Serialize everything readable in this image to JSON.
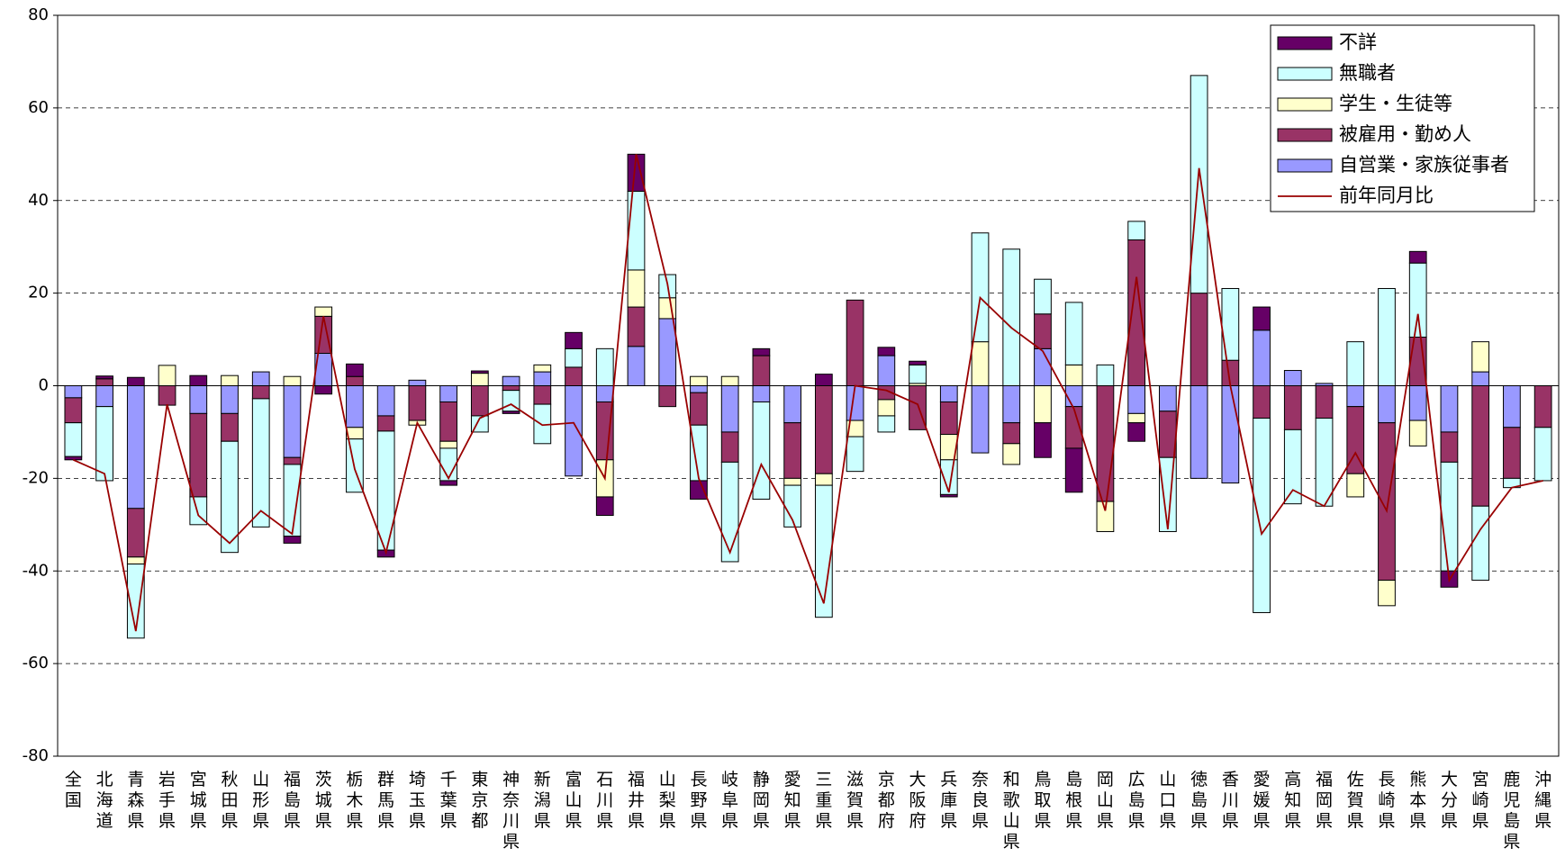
{
  "chart_data": {
    "type": "bar",
    "stacked": true,
    "categories": [
      "全国",
      "北海道",
      "青森県",
      "岩手県",
      "宮城県",
      "秋田県",
      "山形県",
      "福島県",
      "茨城県",
      "栃木県",
      "群馬県",
      "埼玉県",
      "千葉県",
      "東京都",
      "神奈川県",
      "新潟県",
      "富山県",
      "石川県",
      "福井県",
      "山梨県",
      "長野県",
      "岐阜県",
      "静岡県",
      "愛知県",
      "三重県",
      "滋賀県",
      "京都府",
      "大阪府",
      "兵庫県",
      "奈良県",
      "和歌山県",
      "鳥取県",
      "島根県",
      "岡山県",
      "広島県",
      "山口県",
      "徳島県",
      "香川県",
      "愛媛県",
      "高知県",
      "福岡県",
      "佐賀県",
      "長崎県",
      "熊本県",
      "大分県",
      "宮崎県",
      "鹿児島県",
      "沖縄県"
    ],
    "series": [
      {
        "name": "不詳",
        "color": "#660066",
        "values": [
          -0.7,
          0.6,
          1.8,
          0,
          2.2,
          0,
          0,
          -1.5,
          -1.8,
          2.7,
          -1.5,
          0,
          -1,
          0.5,
          -0.5,
          0,
          3.5,
          -4,
          8,
          0,
          -4,
          0,
          1.5,
          0,
          2.5,
          0,
          1.8,
          0.8,
          -0.5,
          0,
          0,
          -7.5,
          -9.5,
          0,
          -4,
          0,
          0,
          0,
          5,
          0,
          0,
          0,
          0,
          2.5,
          -3.5,
          0,
          0,
          0
        ]
      },
      {
        "name": "無職者",
        "color": "#ccffff",
        "values": [
          -7.3,
          -16,
          -16,
          0,
          -6,
          -24,
          -27.7,
          -15.5,
          0,
          -11.5,
          -25.7,
          0,
          -7,
          -3.5,
          -4.5,
          -8.5,
          4,
          8,
          17,
          5,
          -12,
          -21.5,
          -21,
          -9,
          -28.5,
          -7.5,
          -3.5,
          4,
          -7.5,
          23.5,
          29.5,
          7.5,
          13.5,
          4.5,
          4,
          -16,
          47,
          15.5,
          -42,
          -16,
          -19,
          9.5,
          21,
          16,
          -23.5,
          -16,
          -2,
          -11.5
        ]
      },
      {
        "name": "学生・生徒等",
        "color": "#ffffcc",
        "values": [
          0,
          0,
          -1.5,
          4.4,
          0,
          2.2,
          0,
          2,
          2,
          -2.5,
          0,
          -1,
          -1.5,
          2.7,
          0,
          1.5,
          0,
          -8,
          8,
          4.5,
          2,
          2,
          0,
          -1.5,
          -2.5,
          -3.5,
          -3.5,
          0.5,
          -5.5,
          9.5,
          -4.5,
          -8,
          4.5,
          -6.5,
          -2,
          0,
          0,
          0,
          0,
          0,
          0,
          -5,
          -5.5,
          -5.5,
          0,
          6.5,
          0,
          0
        ]
      },
      {
        "name": "被雇用・勤め人",
        "color": "#993366",
        "values": [
          -5.4,
          1.5,
          -10.5,
          -4.2,
          -18,
          -6,
          -2.8,
          -1.5,
          8,
          2,
          -3.3,
          -7.5,
          -8.5,
          -6.5,
          -1,
          -4,
          4,
          -12.5,
          8.5,
          -4.5,
          -7,
          -6.5,
          6.5,
          -12,
          -19,
          18.5,
          -3,
          -9.5,
          -7,
          0,
          -4.5,
          7.5,
          -9,
          -25,
          31.5,
          -10,
          20,
          5.5,
          -7,
          -9.5,
          -7,
          -14.5,
          -34,
          10.5,
          -6.5,
          -26,
          -11,
          -9
        ]
      },
      {
        "name": "自営業・家族従事者",
        "color": "#9999ff",
        "values": [
          -2.6,
          -4.5,
          -26.5,
          0,
          -6,
          -6,
          3,
          -15.5,
          7,
          -9,
          -6.5,
          1.2,
          -3.5,
          0,
          2,
          3,
          -19.5,
          -3.5,
          8.5,
          14.5,
          -1.5,
          -10,
          -3.5,
          -8,
          0,
          -7.5,
          6.5,
          0,
          -3.5,
          -14.5,
          -8,
          8,
          -4.5,
          0,
          -6,
          -5.5,
          -20,
          -21,
          12,
          3.3,
          0.5,
          -4.5,
          -8,
          -7.5,
          -10,
          3,
          -9,
          0
        ]
      },
      {
        "name": "前年同月比",
        "type": "line",
        "color": "#990000",
        "values": [
          -16,
          -19,
          -53,
          -4,
          -28,
          -34,
          -27,
          -32,
          15,
          -18,
          -36,
          -8,
          -20,
          -7,
          -4,
          -8.5,
          -8,
          -20,
          50,
          22,
          -20,
          -36,
          -17,
          -29,
          -47,
          0,
          -1,
          -4,
          -23,
          19,
          12.5,
          7.5,
          -5,
          -27,
          23.5,
          -31,
          47,
          0,
          -32,
          -22.5,
          -26,
          -14.5,
          -27,
          15.5,
          -42,
          -31,
          -22,
          -20.5
        ]
      }
    ],
    "ylim": [
      -80,
      80
    ],
    "yticks": [
      -80,
      -60,
      -40,
      -20,
      0,
      20,
      40,
      60,
      80
    ],
    "grid": true,
    "legend": "upper-right"
  }
}
